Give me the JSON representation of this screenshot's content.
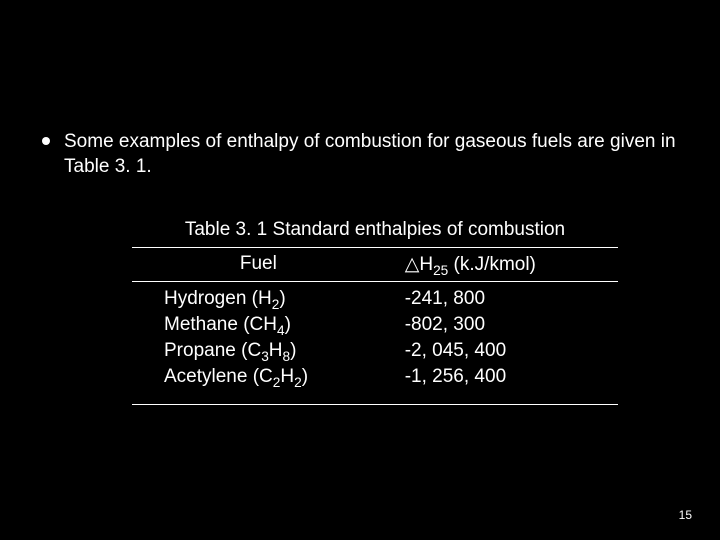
{
  "colors": {
    "background": "#000000",
    "text": "#ffffff",
    "rule": "#ffffff"
  },
  "typography": {
    "body_fontsize_pt": 19,
    "pagenum_fontsize_pt": 12,
    "font_family": "Arial"
  },
  "bullet": {
    "text": "Some examples of enthalpy of combustion for gaseous fuels are given in Table 3. 1."
  },
  "table": {
    "title": "Table 3. 1 Standard enthalpies of combustion",
    "columns": {
      "fuel": "Fuel",
      "dh": {
        "prefix": "△H",
        "sub": "25",
        "suffix": " (k.J/kmol)"
      }
    },
    "rows": [
      {
        "name": "Hydrogen",
        "formula_base": "(H",
        "formula_sub": "2",
        "formula_tail": ")",
        "value": "-241, 800"
      },
      {
        "name": "Methane",
        "formula_base": "(CH",
        "formula_sub": "4",
        "formula_tail": ")",
        "value": "-802, 300"
      },
      {
        "name": "Propane",
        "formula_base": "(C",
        "formula_sub": "3",
        "formula_mid": "H",
        "formula_sub2": "8",
        "formula_tail": ")",
        "value": "-2, 045, 400"
      },
      {
        "name": "Acetylene",
        "formula_base": "(C",
        "formula_sub": "2",
        "formula_mid": "H",
        "formula_sub2": "2",
        "formula_tail": ")",
        "value": "-1, 256, 400"
      }
    ]
  },
  "page_number": "15"
}
